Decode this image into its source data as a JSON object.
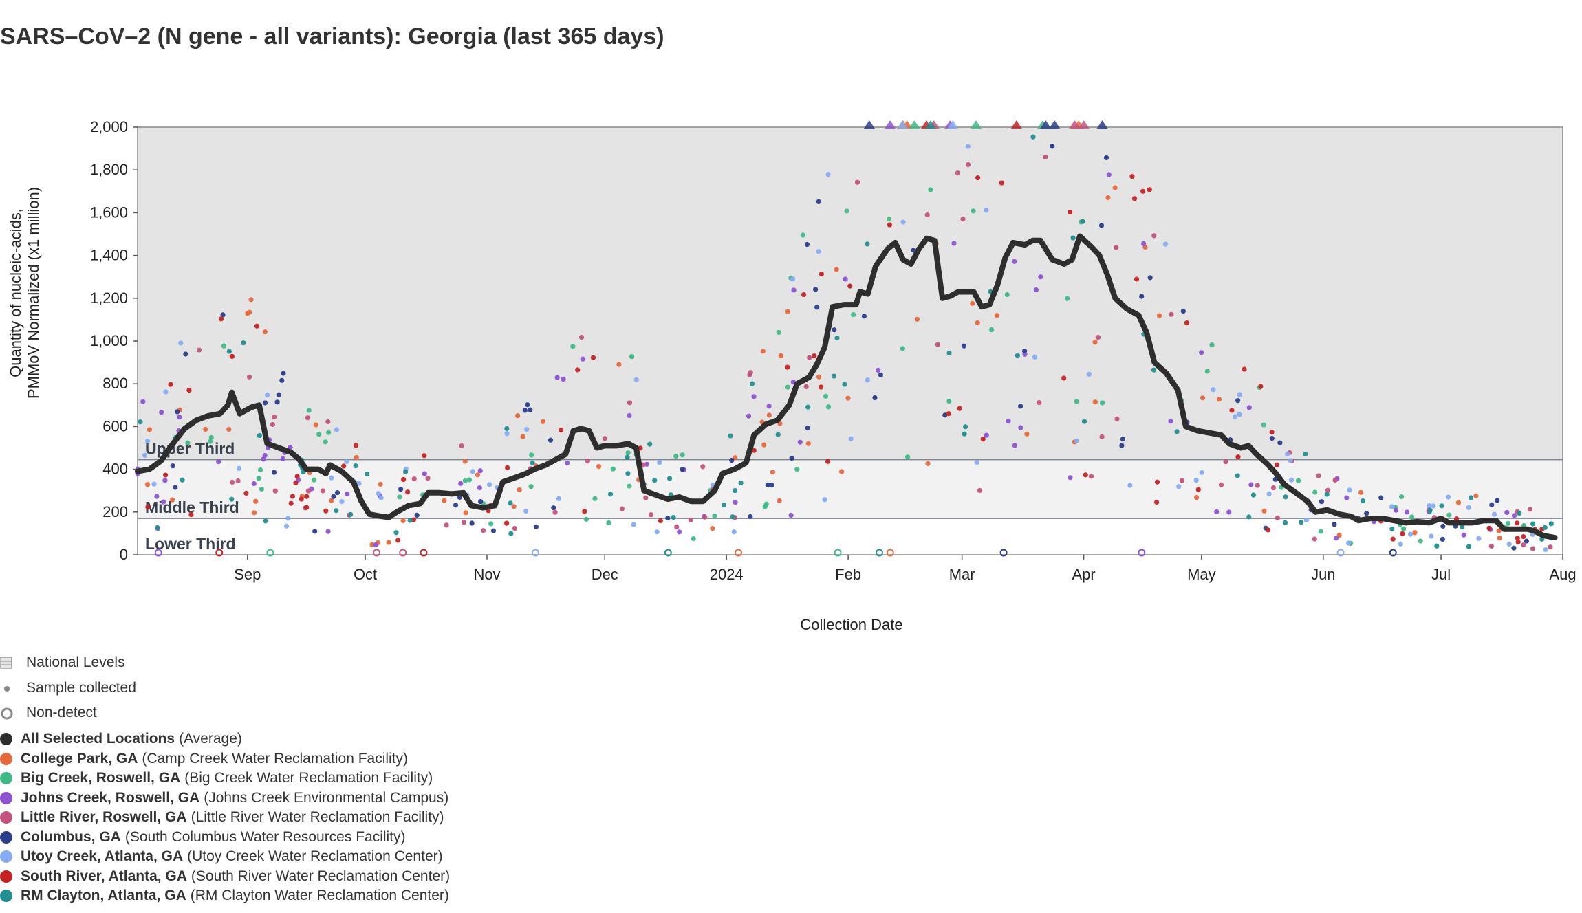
{
  "title": "SARS–CoV–2 (N gene - all variants): Georgia (last 365 days)",
  "chart_data": {
    "type": "scatter",
    "title": "SARS–CoV–2 (N gene - all variants): Georgia (last 365 days)",
    "xlabel": "Collection Date",
    "ylabel_line1": "Quantity of nucleic-acids,",
    "ylabel_line2": "PMMoV Normalized (x1 million)",
    "ylim": [
      0,
      2000
    ],
    "y_ticks": [
      {
        "value": 0,
        "label": "0"
      },
      {
        "value": 200,
        "label": "200"
      },
      {
        "value": 400,
        "label": "400"
      },
      {
        "value": 600,
        "label": "600"
      },
      {
        "value": 800,
        "label": "800"
      },
      {
        "value": 1000,
        "label": "1,000"
      },
      {
        "value": 1200,
        "label": "1,200"
      },
      {
        "value": 1400,
        "label": "1,400"
      },
      {
        "value": 1600,
        "label": "1,600"
      },
      {
        "value": 1800,
        "label": "1,800"
      },
      {
        "value": 2000,
        "label": "2,000"
      }
    ],
    "xlim": [
      "2023-08-04",
      "2024-08-01"
    ],
    "x_ticks": [
      {
        "date": "2023-09-01",
        "label": "Sep"
      },
      {
        "date": "2023-10-01",
        "label": "Oct"
      },
      {
        "date": "2023-11-01",
        "label": "Nov"
      },
      {
        "date": "2023-12-01",
        "label": "Dec"
      },
      {
        "date": "2024-01-01",
        "label": "2024"
      },
      {
        "date": "2024-02-01",
        "label": "Feb"
      },
      {
        "date": "2024-03-01",
        "label": "Mar"
      },
      {
        "date": "2024-04-01",
        "label": "Apr"
      },
      {
        "date": "2024-05-01",
        "label": "May"
      },
      {
        "date": "2024-06-01",
        "label": "Jun"
      },
      {
        "date": "2024-07-01",
        "label": "Jul"
      },
      {
        "date": "2024-08-01",
        "label": "Aug"
      }
    ],
    "bands": [
      {
        "label": "Upper Third",
        "from": 445,
        "to": 2000,
        "color": "#e4e4e4"
      },
      {
        "label": "Middle Third",
        "from": 170,
        "to": 445,
        "color": "#f2f2f2"
      },
      {
        "label": "Lower Third",
        "from": 0,
        "to": 170,
        "color": "#ffffff"
      }
    ],
    "grid": false,
    "legend_position": "bottom-left",
    "average_series": {
      "name": "All Selected Locations",
      "color": "#2e2e2e",
      "points": [
        [
          "2023-08-04",
          390
        ],
        [
          "2023-08-07",
          400
        ],
        [
          "2023-08-10",
          440
        ],
        [
          "2023-08-13",
          520
        ],
        [
          "2023-08-16",
          590
        ],
        [
          "2023-08-19",
          630
        ],
        [
          "2023-08-22",
          650
        ],
        [
          "2023-08-25",
          660
        ],
        [
          "2023-08-27",
          700
        ],
        [
          "2023-08-28",
          760
        ],
        [
          "2023-08-30",
          660
        ],
        [
          "2023-09-02",
          690
        ],
        [
          "2023-09-04",
          700
        ],
        [
          "2023-09-06",
          520
        ],
        [
          "2023-09-09",
          500
        ],
        [
          "2023-09-12",
          480
        ],
        [
          "2023-09-14",
          450
        ],
        [
          "2023-09-16",
          400
        ],
        [
          "2023-09-19",
          400
        ],
        [
          "2023-09-21",
          380
        ],
        [
          "2023-09-22",
          420
        ],
        [
          "2023-09-25",
          390
        ],
        [
          "2023-09-28",
          340
        ],
        [
          "2023-09-30",
          250
        ],
        [
          "2023-10-02",
          190
        ],
        [
          "2023-10-05",
          180
        ],
        [
          "2023-10-07",
          175
        ],
        [
          "2023-10-09",
          200
        ],
        [
          "2023-10-12",
          230
        ],
        [
          "2023-10-15",
          240
        ],
        [
          "2023-10-17",
          290
        ],
        [
          "2023-10-20",
          290
        ],
        [
          "2023-10-23",
          285
        ],
        [
          "2023-10-26",
          290
        ],
        [
          "2023-10-28",
          230
        ],
        [
          "2023-10-31",
          220
        ],
        [
          "2023-11-03",
          230
        ],
        [
          "2023-11-05",
          340
        ],
        [
          "2023-11-08",
          360
        ],
        [
          "2023-11-11",
          380
        ],
        [
          "2023-11-13",
          400
        ],
        [
          "2023-11-16",
          420
        ],
        [
          "2023-11-19",
          450
        ],
        [
          "2023-11-21",
          470
        ],
        [
          "2023-11-23",
          580
        ],
        [
          "2023-11-25",
          590
        ],
        [
          "2023-11-27",
          580
        ],
        [
          "2023-11-29",
          500
        ],
        [
          "2023-12-01",
          510
        ],
        [
          "2023-12-04",
          510
        ],
        [
          "2023-12-07",
          520
        ],
        [
          "2023-12-09",
          500
        ],
        [
          "2023-12-11",
          300
        ],
        [
          "2023-12-14",
          280
        ],
        [
          "2023-12-17",
          260
        ],
        [
          "2023-12-20",
          270
        ],
        [
          "2023-12-23",
          250
        ],
        [
          "2023-12-26",
          250
        ],
        [
          "2023-12-29",
          300
        ],
        [
          "2023-12-31",
          380
        ],
        [
          "2024-01-03",
          400
        ],
        [
          "2024-01-06",
          430
        ],
        [
          "2024-01-08",
          560
        ],
        [
          "2024-01-11",
          610
        ],
        [
          "2024-01-14",
          630
        ],
        [
          "2024-01-17",
          700
        ],
        [
          "2024-01-19",
          800
        ],
        [
          "2024-01-22",
          830
        ],
        [
          "2024-01-24",
          890
        ],
        [
          "2024-01-26",
          970
        ],
        [
          "2024-01-28",
          1160
        ],
        [
          "2024-01-31",
          1170
        ],
        [
          "2024-02-03",
          1170
        ],
        [
          "2024-02-04",
          1230
        ],
        [
          "2024-02-06",
          1220
        ],
        [
          "2024-02-08",
          1350
        ],
        [
          "2024-02-11",
          1430
        ],
        [
          "2024-02-13",
          1460
        ],
        [
          "2024-02-15",
          1380
        ],
        [
          "2024-02-17",
          1360
        ],
        [
          "2024-02-19",
          1430
        ],
        [
          "2024-02-21",
          1480
        ],
        [
          "2024-02-23",
          1470
        ],
        [
          "2024-02-25",
          1200
        ],
        [
          "2024-02-27",
          1210
        ],
        [
          "2024-02-29",
          1230
        ],
        [
          "2024-03-02",
          1230
        ],
        [
          "2024-03-04",
          1230
        ],
        [
          "2024-03-06",
          1160
        ],
        [
          "2024-03-08",
          1170
        ],
        [
          "2024-03-10",
          1260
        ],
        [
          "2024-03-12",
          1390
        ],
        [
          "2024-03-14",
          1460
        ],
        [
          "2024-03-17",
          1450
        ],
        [
          "2024-03-19",
          1470
        ],
        [
          "2024-03-21",
          1470
        ],
        [
          "2024-03-24",
          1380
        ],
        [
          "2024-03-27",
          1360
        ],
        [
          "2024-03-29",
          1380
        ],
        [
          "2024-03-31",
          1490
        ],
        [
          "2024-04-03",
          1440
        ],
        [
          "2024-04-05",
          1400
        ],
        [
          "2024-04-07",
          1310
        ],
        [
          "2024-04-09",
          1200
        ],
        [
          "2024-04-12",
          1150
        ],
        [
          "2024-04-15",
          1120
        ],
        [
          "2024-04-17",
          1040
        ],
        [
          "2024-04-19",
          900
        ],
        [
          "2024-04-22",
          850
        ],
        [
          "2024-04-25",
          770
        ],
        [
          "2024-04-27",
          600
        ],
        [
          "2024-04-30",
          580
        ],
        [
          "2024-05-03",
          570
        ],
        [
          "2024-05-06",
          560
        ],
        [
          "2024-05-08",
          520
        ],
        [
          "2024-05-11",
          500
        ],
        [
          "2024-05-13",
          510
        ],
        [
          "2024-05-15",
          470
        ],
        [
          "2024-05-18",
          420
        ],
        [
          "2024-05-20",
          380
        ],
        [
          "2024-05-22",
          330
        ],
        [
          "2024-05-25",
          290
        ],
        [
          "2024-05-28",
          250
        ],
        [
          "2024-05-30",
          200
        ],
        [
          "2024-06-02",
          210
        ],
        [
          "2024-06-05",
          190
        ],
        [
          "2024-06-08",
          180
        ],
        [
          "2024-06-10",
          160
        ],
        [
          "2024-06-13",
          170
        ],
        [
          "2024-06-16",
          170
        ],
        [
          "2024-06-19",
          160
        ],
        [
          "2024-06-22",
          150
        ],
        [
          "2024-06-25",
          155
        ],
        [
          "2024-06-28",
          150
        ],
        [
          "2024-07-01",
          170
        ],
        [
          "2024-07-03",
          150
        ],
        [
          "2024-07-06",
          150
        ],
        [
          "2024-07-09",
          150
        ],
        [
          "2024-07-12",
          160
        ],
        [
          "2024-07-15",
          160
        ],
        [
          "2024-07-17",
          120
        ],
        [
          "2024-07-20",
          120
        ],
        [
          "2024-07-23",
          120
        ],
        [
          "2024-07-25",
          110
        ],
        [
          "2024-07-27",
          90
        ],
        [
          "2024-07-30",
          80
        ]
      ]
    },
    "series": [
      {
        "name": "College Park, GA",
        "detail": "(Camp Creek Water Reclamation Facility)",
        "color": "#e8683a"
      },
      {
        "name": "Big Creek, Roswell, GA",
        "detail": "(Big Creek Water Reclamation Facility)",
        "color": "#3dba86"
      },
      {
        "name": "Johns Creek, Roswell, GA",
        "detail": "(Johns Creek Environmental Campus)",
        "color": "#8e52d4"
      },
      {
        "name": "Little River, Roswell, GA",
        "detail": "(Little River Water Reclamation Facility)",
        "color": "#c4527e"
      },
      {
        "name": "Columbus, GA",
        "detail": "(South Columbus Water Resources Facility)",
        "color": "#2a3d8c"
      },
      {
        "name": "Utoy Creek, Atlanta, GA",
        "detail": "(Utoy Creek Water Reclamation Center)",
        "color": "#86acf5"
      },
      {
        "name": "South River, Atlanta, GA",
        "detail": "(South River Water Reclamation Center)",
        "color": "#c62222"
      },
      {
        "name": "RM Clayton, Atlanta, GA",
        "detail": "(RM Clayton Water Reclamation Center)",
        "color": "#1f8f91"
      }
    ],
    "sample_points_per_location": 80
  },
  "legend": {
    "levels": [
      {
        "label": "National Levels",
        "icon": "national-levels-icon"
      },
      {
        "label": "Sample collected",
        "icon": "sample-dot-icon"
      },
      {
        "label": "Non-detect",
        "icon": "non-detect-ring-icon"
      }
    ],
    "average": {
      "name": "All Selected Locations",
      "detail": "(Average)",
      "color": "#2e2e2e"
    }
  }
}
